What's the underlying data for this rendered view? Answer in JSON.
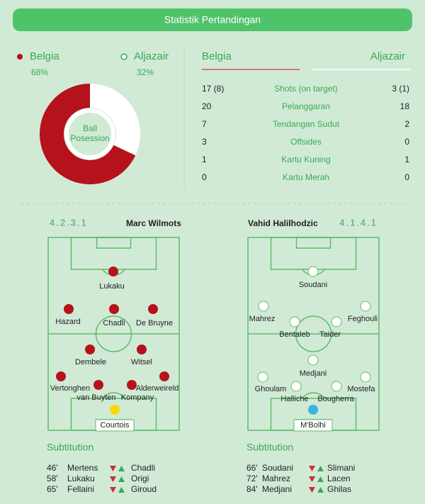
{
  "header": {
    "title": "Statistik Pertandingan"
  },
  "possession": {
    "center_label": [
      "Ball",
      "Posession"
    ],
    "teams": [
      {
        "name": "Belgia",
        "value": 68,
        "label": "68%",
        "color": "#b5121b"
      },
      {
        "name": "Aljazair",
        "value": 32,
        "label": "32%",
        "color": "#ffffff"
      }
    ]
  },
  "stats": {
    "rows": [
      [
        "17 (8)",
        "Shots (on target)",
        "3 (1)"
      ],
      [
        "20",
        "Pelanggaran",
        "18"
      ],
      [
        "7",
        "Tendangan Sudut",
        "2"
      ],
      [
        "3",
        "Offsides",
        "0"
      ],
      [
        "1",
        "Kartu Kuning",
        "1"
      ],
      [
        "0",
        "Kartu Merah",
        "0"
      ]
    ]
  },
  "substitution_title": "Subtitution",
  "lineups": [
    {
      "formation": "4.2.3.1",
      "coach": "Marc Wilmots",
      "players": [
        "Lukaku",
        "Hazard",
        "Chadli",
        "De Bruyne",
        "Dembele",
        "Witsel",
        "Vertonghen",
        "van Buyten",
        "Kompany",
        "Alderweireld",
        "Courtois"
      ],
      "substitutions": [
        {
          "minute": "46'",
          "out": "Mertens",
          "in": "Chadli"
        },
        {
          "minute": "58'",
          "out": "Lukaku",
          "in": "Origi"
        },
        {
          "minute": "65'",
          "out": "Fellaini",
          "in": "Giroud"
        }
      ]
    },
    {
      "formation": "4.1.4.1",
      "coach": "Vahid Halilhodzic",
      "players": [
        "Soudani",
        "Mahrez",
        "Feghouli",
        "Bentaleb",
        "Taider",
        "Medjani",
        "Ghoulam",
        "Halliche",
        "Bougherra",
        "Mostefa",
        "M'Bolhi"
      ],
      "substitutions": [
        {
          "minute": "66'",
          "out": "Soudani",
          "in": "Slimani"
        },
        {
          "minute": "72'",
          "out": "Mahrez",
          "in": "Lacen"
        },
        {
          "minute": "84'",
          "out": "Medjani",
          "in": "Ghilas"
        }
      ]
    }
  ]
}
